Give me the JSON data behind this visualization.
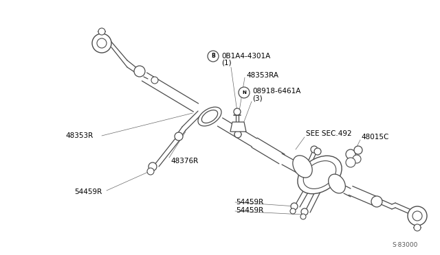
{
  "bg_color": "#ffffff",
  "line_color": "#555555",
  "lc": "#4a4a4a",
  "figsize": [
    6.4,
    3.72
  ],
  "dpi": 100,
  "labels": {
    "B_part": "0B1A4-4301A",
    "B_sub": "(1)",
    "part1": "48353RA",
    "N_part": "08918-6461A",
    "N_sub": "(3)",
    "sec": "SEE SEC.492",
    "left_bushing": "48353R",
    "right_washer": "48015C",
    "bracket": "48376R",
    "bolt1": "54459R",
    "bolt2": "54459R",
    "bolt3": "54459R",
    "fignum": "S·83000"
  }
}
